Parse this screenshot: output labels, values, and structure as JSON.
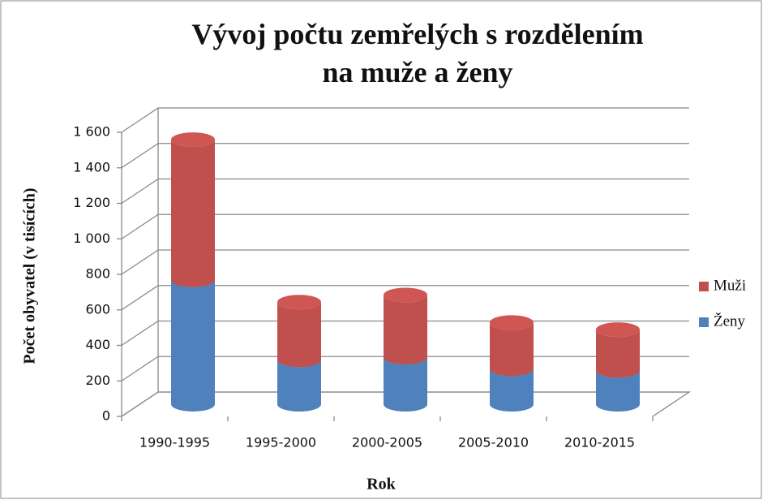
{
  "chart_data": {
    "type": "bar3d_stacked",
    "title": "Vývoj počtu zemřelých s rozdělením na muže a ženy",
    "x_label": "Rok",
    "y_label": "Počet obyvatel (v tisících)",
    "categories": [
      "1990-1995",
      "1995-2000",
      "2000-2005",
      "2005-2010",
      "2010-2015"
    ],
    "series": [
      {
        "name": "Ženy",
        "color": "#4f81bd",
        "values": [
          700,
          250,
          265,
          200,
          190
        ]
      },
      {
        "name": "Muži",
        "color": "#c0504d",
        "values": [
          790,
          325,
          350,
          260,
          230
        ]
      }
    ],
    "ylim": [
      0,
      1600
    ],
    "yticks": [
      0,
      200,
      400,
      600,
      800,
      {
        "value": 1000,
        "label": "1 000"
      },
      {
        "value": 1200,
        "label": "1 200"
      },
      {
        "value": 1400,
        "label": "1 400"
      },
      {
        "value": 1600,
        "label": "1 600"
      }
    ],
    "grid": true,
    "legend": "right"
  }
}
